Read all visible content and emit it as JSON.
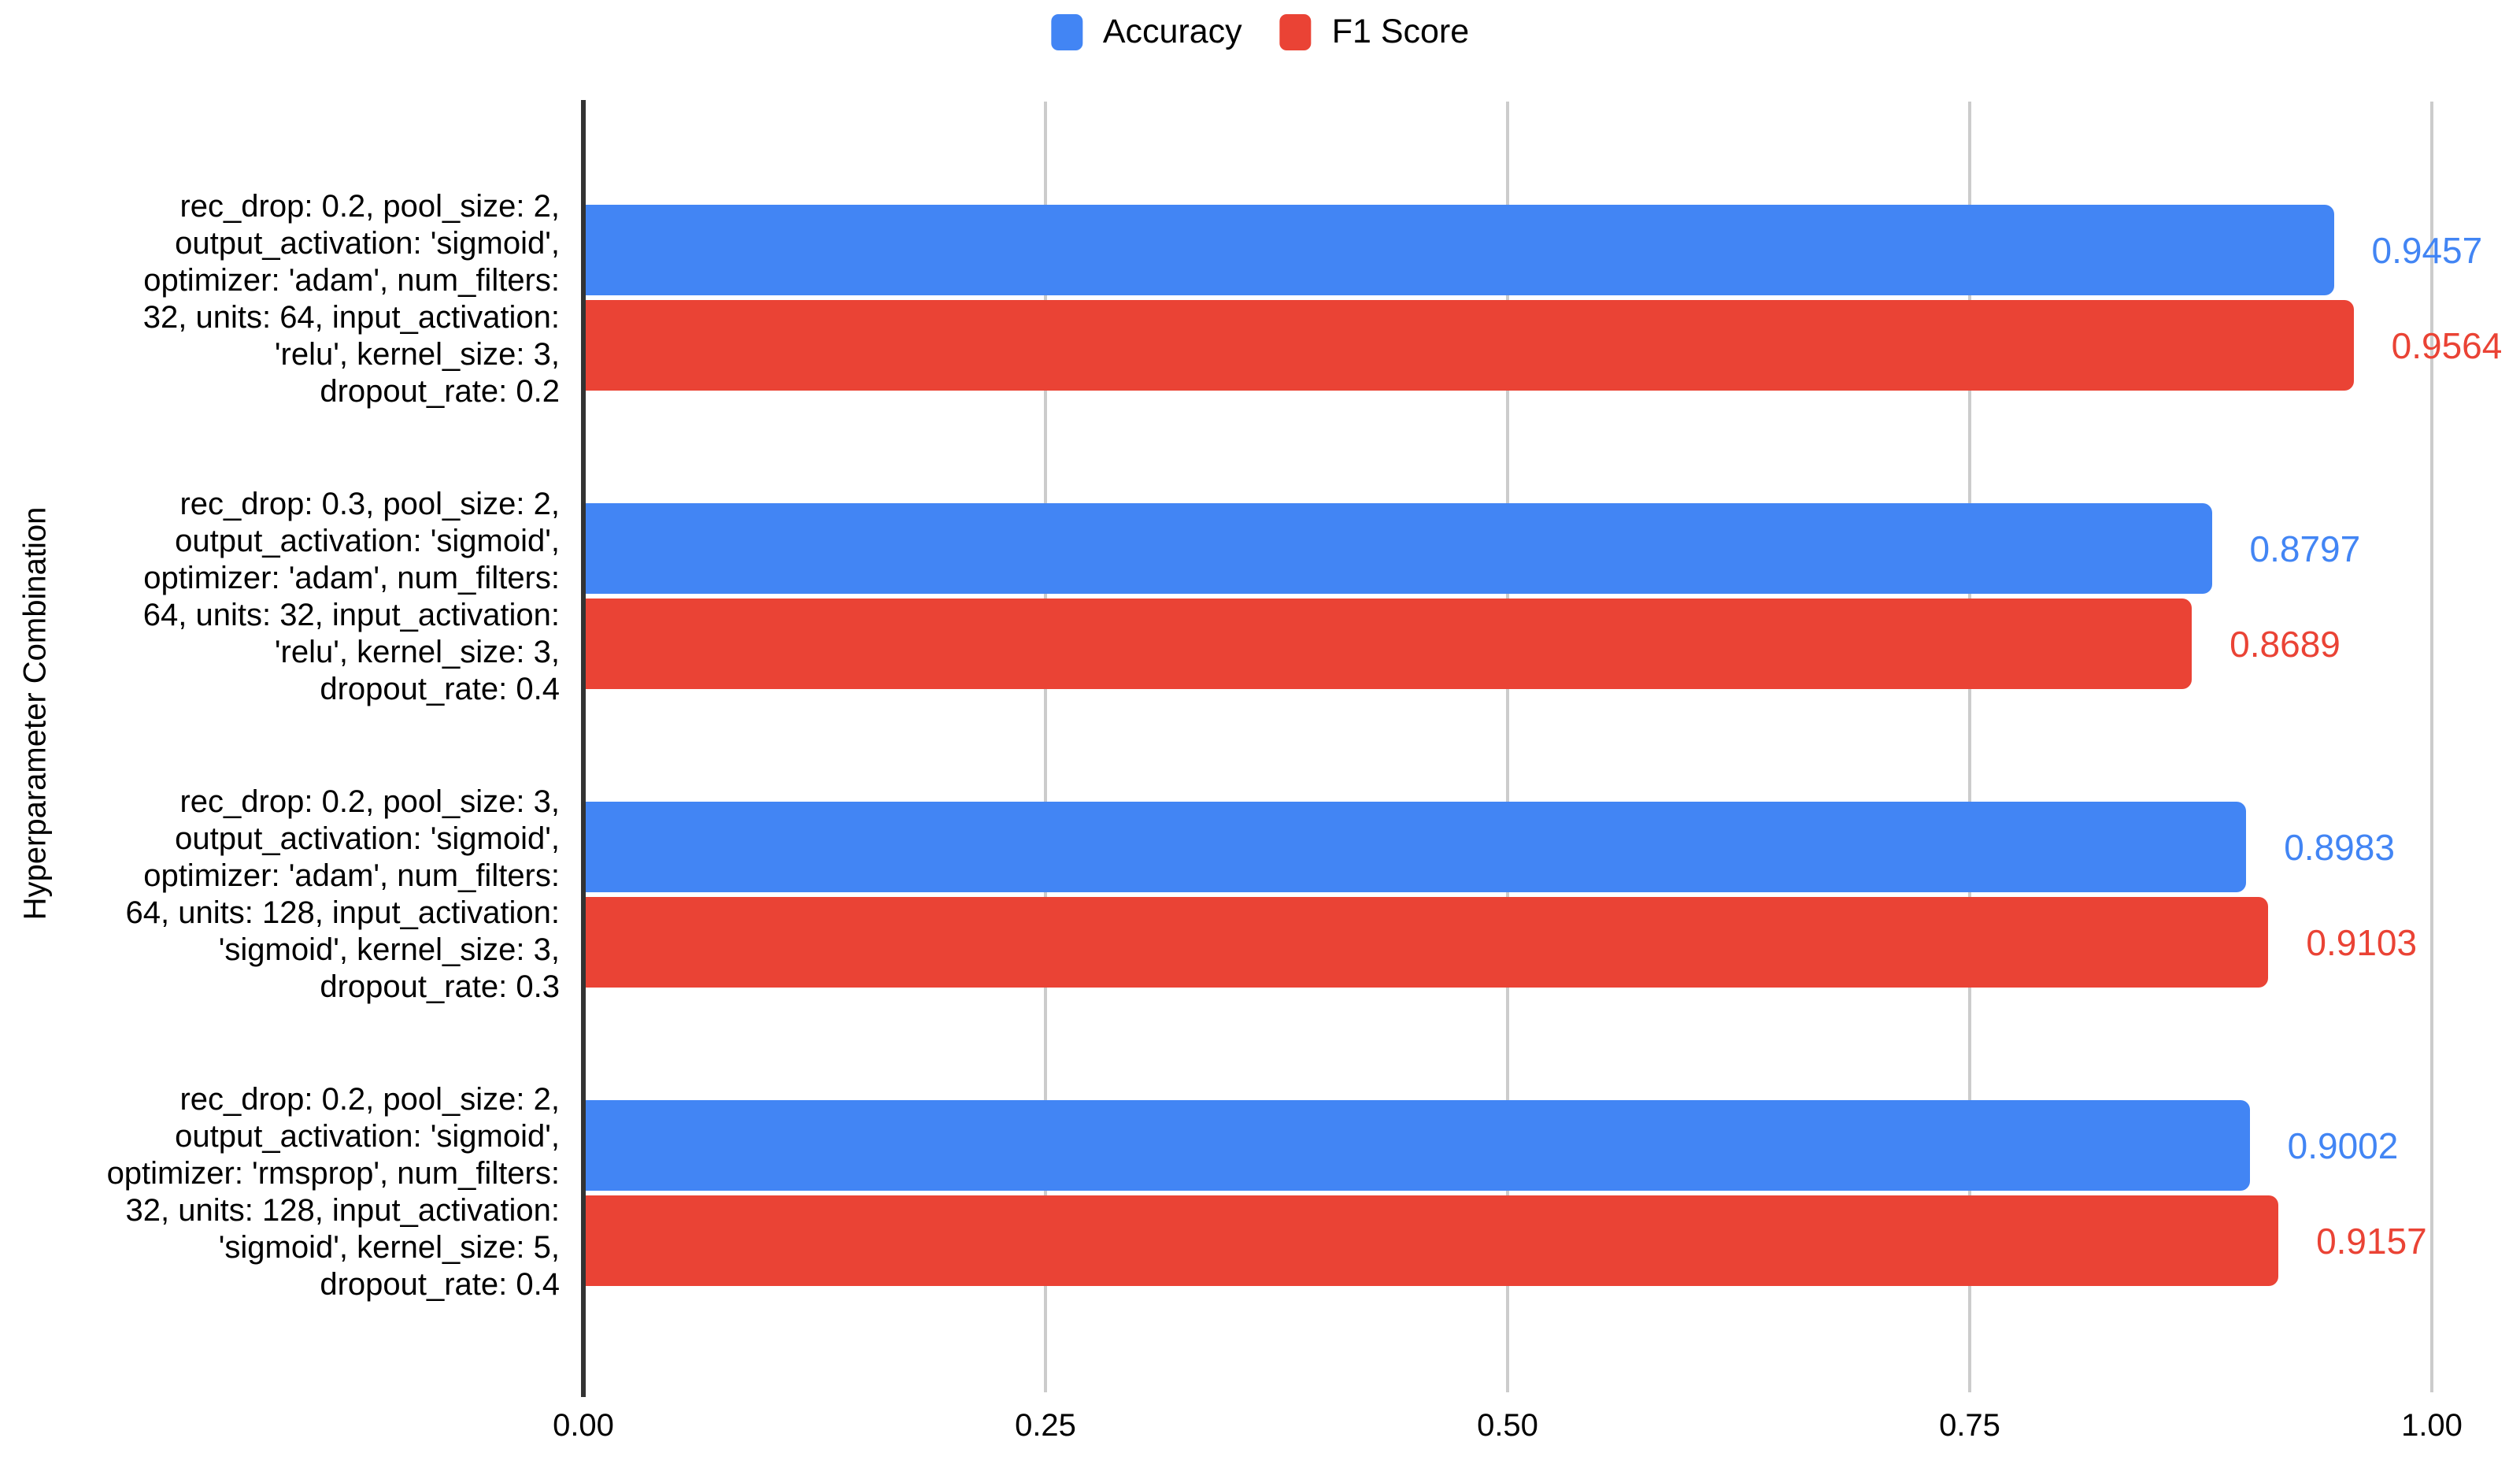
{
  "legend": [
    {
      "label": "Accuracy",
      "color": "#4285f4"
    },
    {
      "label": "F1 Score",
      "color": "#ea4335"
    }
  ],
  "axes": {
    "y_title": "Hyperparameter Combination",
    "x_ticks": [
      "0.00",
      "0.25",
      "0.50",
      "0.75",
      "1.00"
    ]
  },
  "chart_data": {
    "type": "bar",
    "orientation": "horizontal",
    "xlabel": "",
    "ylabel": "Hyperparameter Combination",
    "xlim": [
      0,
      1.0
    ],
    "x_tick_labels": [
      "0.00",
      "0.25",
      "0.50",
      "0.75",
      "1.00"
    ],
    "grid": true,
    "legend_position": "top-center",
    "value_labels_shown": true,
    "categories": [
      "rec_drop: 0.2, pool_size: 2,\noutput_activation: 'sigmoid',\noptimizer: 'adam', num_filters:\n32, units: 64, input_activation:\n'relu', kernel_size: 3,\ndropout_rate: 0.2",
      "rec_drop: 0.3, pool_size: 2,\noutput_activation: 'sigmoid',\noptimizer: 'adam', num_filters:\n64, units: 32, input_activation:\n'relu', kernel_size: 3,\ndropout_rate: 0.4",
      "rec_drop: 0.2, pool_size: 3,\noutput_activation: 'sigmoid',\noptimizer: 'adam', num_filters:\n64, units: 128, input_activation:\n'sigmoid', kernel_size: 3,\ndropout_rate: 0.3",
      "rec_drop: 0.2, pool_size: 2,\noutput_activation: 'sigmoid',\noptimizer: 'rmsprop', num_filters:\n32, units: 128, input_activation:\n'sigmoid', kernel_size: 5,\ndropout_rate: 0.4"
    ],
    "series": [
      {
        "name": "Accuracy",
        "color": "#4285f4",
        "values": [
          0.9457,
          0.8797,
          0.8983,
          0.9002
        ]
      },
      {
        "name": "F1 Score",
        "color": "#ea4335",
        "values": [
          0.9564,
          0.8689,
          0.9103,
          0.9157
        ]
      }
    ]
  }
}
